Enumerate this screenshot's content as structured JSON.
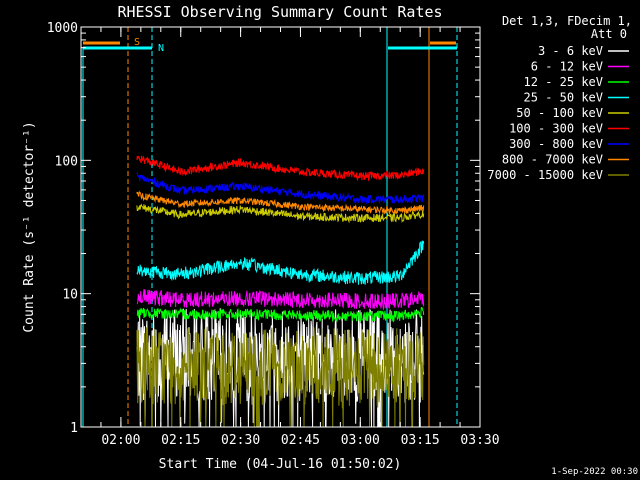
{
  "chart_data": {
    "type": "line",
    "title": "RHESSI Observing Summary Count Rates",
    "xlabel": "Start Time (04-Jul-16 01:50:02)",
    "ylabel": "Count Rate (s⁻¹ detector⁻¹)",
    "yscale": "log",
    "ylim": [
      1,
      1000
    ],
    "xlim": [
      "01:50",
      "03:30"
    ],
    "x_ticks": [
      "02:00",
      "02:15",
      "02:30",
      "02:45",
      "03:00",
      "03:15",
      "03:30"
    ],
    "y_ticks": [
      "1",
      "10",
      "100",
      "1000"
    ],
    "legend_header": [
      "Det 1,3, FDecim 1,",
      "Att 0"
    ],
    "legend_position": "right",
    "series": [
      {
        "name": "3 - 6 keV",
        "color": "#ffffff",
        "x": [
          "02:04",
          "02:15",
          "02:30",
          "02:45",
          "03:00",
          "03:10",
          "03:16"
        ],
        "y": [
          3.4,
          3.5,
          3.5,
          3.5,
          3.4,
          3.4,
          3.4
        ]
      },
      {
        "name": "6 - 12 keV",
        "color": "#ff00ff",
        "x": [
          "02:04",
          "02:15",
          "02:30",
          "02:45",
          "03:00",
          "03:10",
          "03:16"
        ],
        "y": [
          9.5,
          9.0,
          9.2,
          9.0,
          8.8,
          8.8,
          9.2
        ]
      },
      {
        "name": "12 - 25 keV",
        "color": "#00ff00",
        "x": [
          "02:04",
          "02:15",
          "02:30",
          "02:45",
          "03:00",
          "03:10",
          "03:16"
        ],
        "y": [
          7.2,
          7.0,
          7.0,
          6.9,
          6.8,
          6.8,
          7.3
        ]
      },
      {
        "name": "25 - 50 keV",
        "color": "#00ffff",
        "x": [
          "02:04",
          "02:15",
          "02:30",
          "02:45",
          "03:00",
          "03:10",
          "03:16"
        ],
        "y": [
          15,
          14,
          17,
          14,
          13,
          13.5,
          24
        ]
      },
      {
        "name": "50 - 100 keV",
        "color": "#cccc00",
        "x": [
          "02:04",
          "02:15",
          "02:30",
          "02:45",
          "03:00",
          "03:10",
          "03:16"
        ],
        "y": [
          45,
          39,
          43,
          38,
          37,
          37,
          40
        ]
      },
      {
        "name": "100 - 300 keV",
        "color": "#ff0000",
        "x": [
          "02:04",
          "02:15",
          "02:30",
          "02:45",
          "03:00",
          "03:10",
          "03:16"
        ],
        "y": [
          105,
          82,
          96,
          82,
          76,
          77,
          84
        ]
      },
      {
        "name": "300 - 800 keV",
        "color": "#0000ff",
        "x": [
          "02:04",
          "02:15",
          "02:30",
          "02:45",
          "03:00",
          "03:10",
          "03:16"
        ],
        "y": [
          76,
          59,
          64,
          56,
          51,
          51,
          52
        ]
      },
      {
        "name": "800 - 7000 keV",
        "color": "#ff8800",
        "x": [
          "02:04",
          "02:15",
          "02:30",
          "02:45",
          "03:00",
          "03:10",
          "03:16"
        ],
        "y": [
          55,
          47,
          50,
          45,
          43,
          42,
          44
        ]
      },
      {
        "name": "7000 - 15000 keV",
        "color": "#808000",
        "x": [
          "02:04",
          "02:15",
          "02:30",
          "02:45",
          "03:00",
          "03:10",
          "03:16"
        ],
        "y": [
          3.0,
          2.8,
          2.9,
          2.9,
          2.7,
          2.8,
          2.9
        ]
      }
    ],
    "flags": [
      {
        "label": "S",
        "color": "#ff8800"
      },
      {
        "label": "N",
        "color": "#00ffff"
      }
    ],
    "timestamp": "1-Sep-2022 00:30"
  }
}
